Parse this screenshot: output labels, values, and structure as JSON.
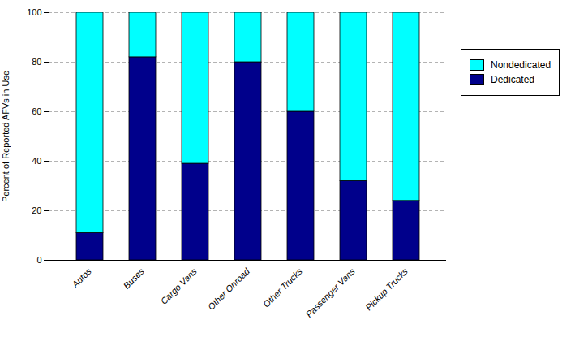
{
  "chart_data": {
    "type": "bar",
    "stacked": true,
    "categories": [
      "Autos",
      "Buses",
      "Cargo Vans",
      "Other Onroad",
      "Other Trucks",
      "Passenger Vans",
      "Pickup Trucks"
    ],
    "series": [
      {
        "name": "Dedicated",
        "color": "#00008B",
        "values": [
          11,
          82,
          39,
          80,
          60,
          32,
          24
        ]
      },
      {
        "name": "Nondedicated",
        "color": "#00FFFF",
        "values": [
          89,
          18,
          61,
          20,
          40,
          68,
          76
        ]
      }
    ],
    "ylabel": "Percent of Reported AFVs in Use",
    "ylim": [
      0,
      100
    ],
    "yticks": [
      0,
      20,
      40,
      60,
      80,
      100
    ],
    "grid": true,
    "legend": "right"
  }
}
